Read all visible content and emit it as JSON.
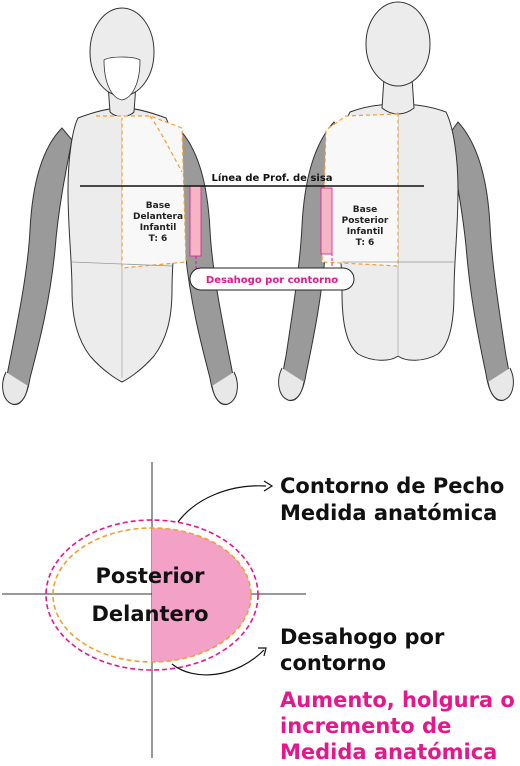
{
  "figure": {
    "sisa_line_label": "Línea de Prof. de sisa",
    "front_block_label": [
      "Base",
      "Delantera",
      "Infantil",
      "T: 6"
    ],
    "back_block_label": [
      "Base",
      "Posterior",
      "Infantil",
      "T: 6"
    ],
    "ease_badge": "Desahogo por contorno"
  },
  "diagram": {
    "posterior": "Posterior",
    "delantero": "Delantero",
    "contorno_title": "Contorno de Pecho",
    "contorno_sub": "Medida anatómica",
    "desahogo_line1": "Desahogo por",
    "desahogo_line2": "contorno",
    "aumento_line1": "Aumento, holgura o",
    "aumento_line2": "incremento de",
    "aumento_line3": "Medida anatómica"
  },
  "colors": {
    "pink_fill": "#f3a1c6",
    "magenta": "#e5178c",
    "orange_dash": "#f0a030",
    "skin_grey": "#9a9a9a",
    "body_light": "#ececec",
    "ease_strip": "#f4b6c4"
  }
}
